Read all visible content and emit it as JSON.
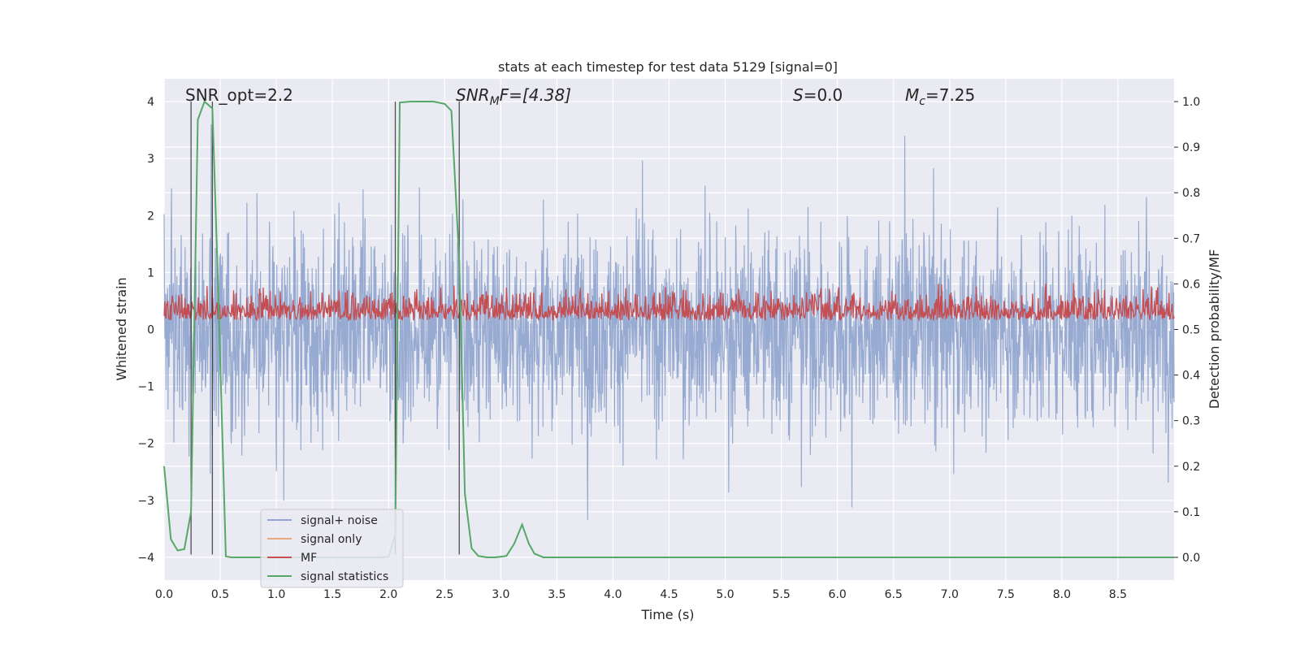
{
  "chart_data": {
    "type": "line",
    "title": "stats at each timestep for test data 5129 [signal=0]",
    "xlabel": "Time (s)",
    "ylabel": "Whitened strain",
    "y2label": "Detection probability/MF",
    "xlim": [
      0.0,
      9.0
    ],
    "ylim": [
      -4.4,
      4.4
    ],
    "y2lim": [
      -0.05,
      1.05
    ],
    "xticks": [
      "0.0",
      "0.5",
      "1.0",
      "1.5",
      "2.0",
      "2.5",
      "3.0",
      "3.5",
      "4.0",
      "4.5",
      "5.0",
      "5.5",
      "6.0",
      "6.5",
      "7.0",
      "7.5",
      "8.0",
      "8.5"
    ],
    "yticks": [
      "4",
      "3",
      "2",
      "1",
      "0",
      "−1",
      "−2",
      "−3",
      "−4"
    ],
    "y2ticks": [
      "1.0",
      "0.9",
      "0.8",
      "0.7",
      "0.6",
      "0.5",
      "0.4",
      "0.3",
      "0.2",
      "0.1",
      "0.0"
    ],
    "grid": true,
    "legend_position": "lower left",
    "annotations": {
      "snr_opt": "SNR_opt=2.2",
      "snr_mf": "SNR",
      "snr_mf_sub": "M",
      "snr_mf_rest": "F=[4.38]",
      "s_stat": "S",
      "s_value": "=0.0",
      "mc": "M",
      "mc_sub": "c",
      "mc_value": "=7.25"
    },
    "vertical_markers_s": [
      0.24,
      0.43,
      2.06,
      2.63
    ],
    "series": [
      {
        "name": "signal+ noise",
        "color": "#92a6cf",
        "axis": "left",
        "description_values": {
          "typical_amplitude": 1.6,
          "peak_max": 3.6,
          "peak_min": -3.9
        }
      },
      {
        "name": "signal only",
        "color": "#e8a87c",
        "axis": "left",
        "values": []
      },
      {
        "name": "MF",
        "color": "#c44e52",
        "axis": "right",
        "baseline": 0.5,
        "range": [
          0.5,
          0.62
        ]
      },
      {
        "name": "signal statistics",
        "color": "#55a868",
        "axis": "right",
        "x": [
          0.0,
          0.06,
          0.12,
          0.18,
          0.24,
          0.3,
          0.36,
          0.43,
          0.48,
          0.55,
          0.6,
          0.8,
          1.2,
          1.6,
          1.9,
          2.0,
          2.06,
          2.1,
          2.2,
          2.4,
          2.5,
          2.56,
          2.63,
          2.68,
          2.74,
          2.8,
          2.88,
          2.95,
          3.05,
          3.12,
          3.19,
          3.25,
          3.3,
          3.38,
          3.5,
          4.0,
          5.0,
          6.0,
          7.0,
          8.0,
          9.0
        ],
        "values": [
          0.2,
          0.04,
          0.015,
          0.018,
          0.1,
          0.96,
          1.0,
          0.985,
          0.6,
          0.002,
          0.0,
          0.0,
          0.0,
          0.0,
          0.0,
          0.001,
          0.05,
          0.998,
          1.0,
          1.0,
          0.995,
          0.98,
          0.65,
          0.14,
          0.02,
          0.003,
          0.0,
          0.0,
          0.003,
          0.03,
          0.072,
          0.03,
          0.008,
          0.0,
          0.0,
          0.0,
          0.0,
          0.0,
          0.0,
          0.0,
          0.0
        ]
      }
    ]
  },
  "colors": {
    "plot_background": "#eaeaf2",
    "grid": "#ffffff",
    "marker_line": "#333333"
  }
}
